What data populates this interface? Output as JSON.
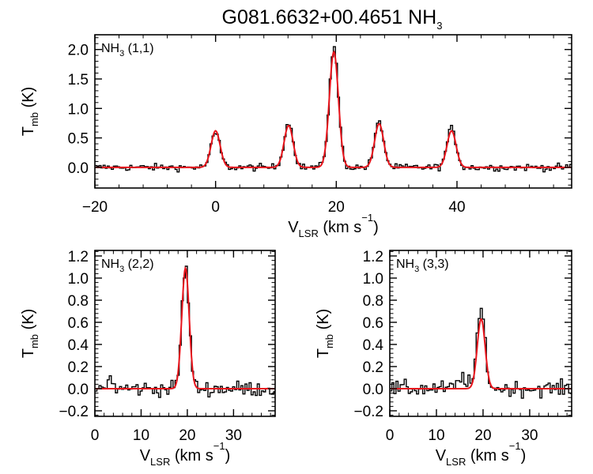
{
  "figure": {
    "title_main": "G081.6632+00.4651 NH",
    "title_sub": "3"
  },
  "colors": {
    "data": "#000000",
    "fit": "#e8141c",
    "axes": "#000000"
  },
  "chart_data": [
    {
      "type": "line",
      "panel": "top",
      "label": {
        "main": "NH",
        "sub": "3",
        "rest": " (1,1)"
      },
      "xlabel": {
        "main": "V",
        "sub": "LSR",
        "rest": " (km s",
        "sup": "−1",
        "close": ")"
      },
      "ylabel": {
        "main": "T",
        "sub": "mb",
        "rest": " (K)"
      },
      "xlim": [
        -20,
        59
      ],
      "ylim": [
        -0.35,
        2.25
      ],
      "xticks": [
        -20,
        0,
        20,
        40
      ],
      "xtick_labels": [
        "−20",
        "0",
        "20",
        "40"
      ],
      "yticks": [
        0.0,
        0.5,
        1.0,
        1.5,
        2.0
      ],
      "ytick_labels": [
        "0.0",
        "0.5",
        "1.0",
        "1.5",
        "2.0"
      ],
      "grid": false,
      "series": [
        {
          "kind": "spectrum",
          "style": "histogram",
          "peaks": [
            [
              0.0,
              0.58,
              0.75
            ],
            [
              12.1,
              0.76,
              0.75
            ],
            [
              19.6,
              2.03,
              0.75
            ],
            [
              27.1,
              0.76,
              0.75
            ],
            [
              39.1,
              0.66,
              0.75
            ]
          ],
          "noise_rms": 0.03
        },
        {
          "kind": "fit",
          "style": "line",
          "peaks": [
            [
              0.0,
              0.62,
              0.75
            ],
            [
              12.1,
              0.71,
              0.75
            ],
            [
              19.6,
              1.96,
              0.75
            ],
            [
              27.1,
              0.74,
              0.75
            ],
            [
              39.1,
              0.62,
              0.75
            ]
          ]
        }
      ]
    },
    {
      "type": "line",
      "panel": "bottom-left",
      "label": {
        "main": "NH",
        "sub": "3",
        "rest": " (2,2)"
      },
      "xlabel": {
        "main": "V",
        "sub": "LSR",
        "rest": " (km s",
        "sup": "−1",
        "close": ")"
      },
      "ylabel": {
        "main": "T",
        "sub": "mb",
        "rest": " (K)"
      },
      "xlim": [
        0,
        39
      ],
      "ylim": [
        -0.25,
        1.25
      ],
      "xticks": [
        0,
        10,
        20,
        30
      ],
      "xtick_labels": [
        "0",
        "10",
        "20",
        "30"
      ],
      "yticks": [
        -0.2,
        0.0,
        0.2,
        0.4,
        0.6,
        0.8,
        1.0,
        1.2
      ],
      "ytick_labels": [
        "−0.2",
        "0.0",
        "0.2",
        "0.4",
        "0.6",
        "0.8",
        "1.0",
        "1.2"
      ],
      "grid": false,
      "series": [
        {
          "kind": "spectrum",
          "style": "histogram",
          "peaks": [
            [
              19.6,
              1.1,
              0.8
            ],
            [
              3.2,
              0.09,
              0.6
            ]
          ],
          "noise_rms": 0.035
        },
        {
          "kind": "fit",
          "style": "line",
          "peaks": [
            [
              19.6,
              1.09,
              0.8
            ]
          ]
        }
      ]
    },
    {
      "type": "line",
      "panel": "bottom-right",
      "label": {
        "main": "NH",
        "sub": "3",
        "rest": " (3,3)"
      },
      "xlabel": {
        "main": "V",
        "sub": "LSR",
        "rest": " (km s",
        "sup": "−1",
        "close": ")"
      },
      "ylabel": {
        "main": "T",
        "sub": "mb",
        "rest": " (K)"
      },
      "xlim": [
        0,
        39
      ],
      "ylim": [
        -0.25,
        1.25
      ],
      "xticks": [
        0,
        10,
        20,
        30
      ],
      "xtick_labels": [
        "0",
        "10",
        "20",
        "30"
      ],
      "yticks": [
        -0.2,
        0.0,
        0.2,
        0.4,
        0.6,
        0.8,
        1.0,
        1.2
      ],
      "ytick_labels": [
        "−0.2",
        "0.0",
        "0.2",
        "0.4",
        "0.6",
        "0.8",
        "1.0",
        "1.2"
      ],
      "grid": false,
      "series": [
        {
          "kind": "spectrum",
          "style": "histogram",
          "peaks": [
            [
              19.6,
              0.72,
              0.85
            ],
            [
              15.8,
              0.1,
              1.0
            ]
          ],
          "noise_rms": 0.035
        },
        {
          "kind": "fit",
          "style": "line",
          "peaks": [
            [
              19.6,
              0.63,
              0.85
            ]
          ]
        }
      ]
    }
  ]
}
